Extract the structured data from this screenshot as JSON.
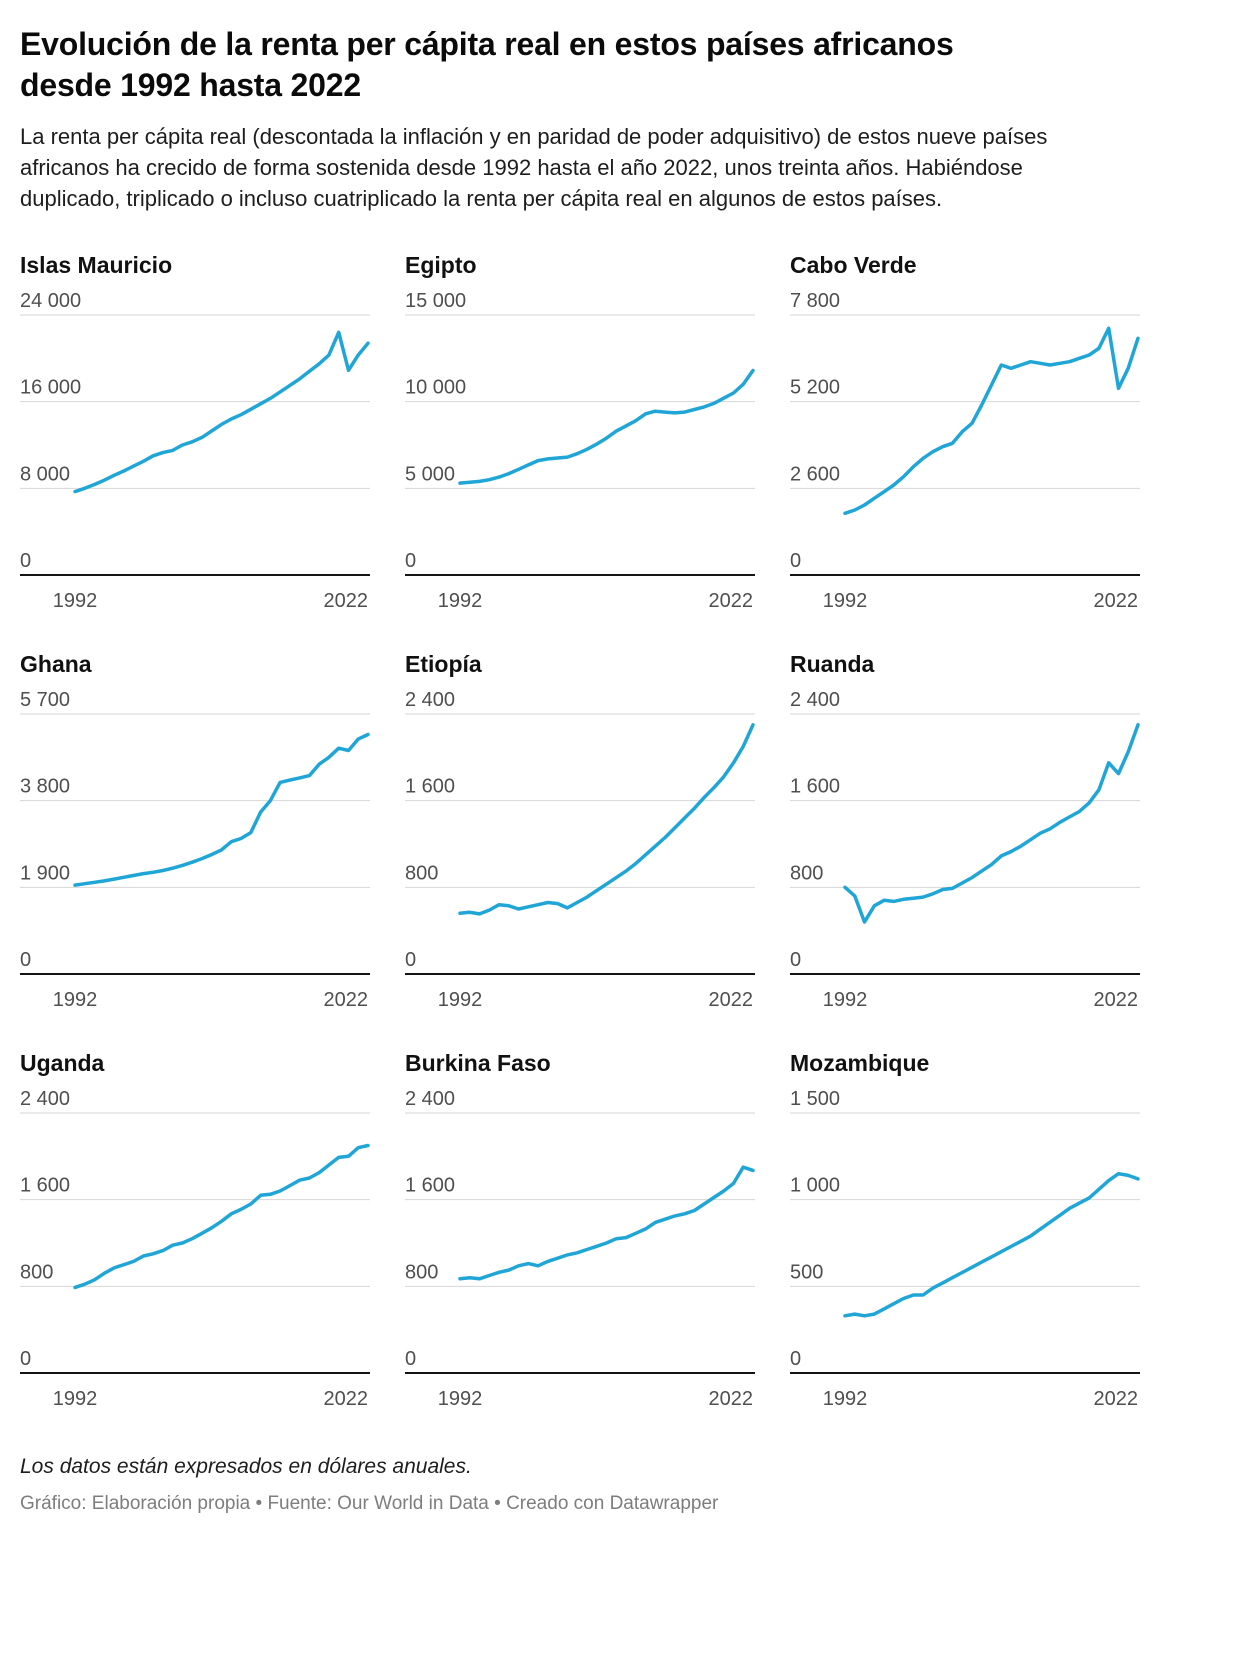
{
  "header": {
    "title": "Evolución de la renta per cápita real en estos países africanos desde 1992 hasta 2022",
    "description": "La renta per cápita real (descontada la inflación y en paridad de poder adquisitivo) de estos nueve países africanos ha crecido de forma sostenida desde 1992 hasta el año 2022, unos treinta años. Habiéndose duplicado, triplicado o incluso cuatriplicado la renta per cápita real en algunos de estos países."
  },
  "footer": {
    "note": "Los datos están expresados en dólares anuales.",
    "credits": "Gráfico: Elaboración propia • Fuente: Our World in Data • Creado con Datawrapper"
  },
  "colors": {
    "line": "#1fa5d6",
    "grid": "#d6d6d6",
    "axis": "#141414",
    "tick_text": "#4f4f4f"
  },
  "chart_data": {
    "type": "line",
    "unit": "dólares anuales",
    "x_start": 1992,
    "x_end": 2022,
    "x_tick_labels": [
      "1992",
      "2022"
    ],
    "grid": true,
    "legend": "none",
    "charts": [
      {
        "title": "Islas Mauricio",
        "ymax": 24000,
        "yticks": [
          0,
          8000,
          16000,
          24000
        ],
        "ytick_labels": [
          "0",
          "8 000",
          "16 000",
          "24 000"
        ],
        "values": [
          7700,
          8000,
          8350,
          8750,
          9200,
          9600,
          10050,
          10500,
          11000,
          11300,
          11500,
          12000,
          12300,
          12700,
          13300,
          13900,
          14400,
          14800,
          15300,
          15800,
          16300,
          16900,
          17500,
          18100,
          18800,
          19500,
          20300,
          22400,
          18900,
          20300,
          21400
        ]
      },
      {
        "title": "Egipto",
        "ymax": 15000,
        "yticks": [
          0,
          5000,
          10000,
          15000
        ],
        "ytick_labels": [
          "0",
          "5 000",
          "10 000",
          "15 000"
        ],
        "values": [
          5300,
          5350,
          5400,
          5500,
          5650,
          5850,
          6100,
          6350,
          6600,
          6700,
          6750,
          6800,
          7000,
          7250,
          7550,
          7900,
          8300,
          8600,
          8900,
          9300,
          9450,
          9400,
          9350,
          9400,
          9550,
          9700,
          9900,
          10200,
          10500,
          11000,
          11800
        ]
      },
      {
        "title": "Cabo Verde",
        "ymax": 7800,
        "yticks": [
          0,
          2600,
          5200,
          7800
        ],
        "ytick_labels": [
          "0",
          "2 600",
          "5 200",
          "7 800"
        ],
        "values": [
          1850,
          1950,
          2100,
          2300,
          2500,
          2700,
          2950,
          3250,
          3500,
          3700,
          3850,
          3950,
          4300,
          4550,
          5100,
          5700,
          6300,
          6200,
          6300,
          6400,
          6350,
          6300,
          6350,
          6400,
          6500,
          6600,
          6800,
          7400,
          5600,
          6200,
          7100
        ]
      },
      {
        "title": "Ghana",
        "ymax": 5700,
        "yticks": [
          0,
          1900,
          3800,
          5700
        ],
        "ytick_labels": [
          "0",
          "1 900",
          "3 800",
          "5 700"
        ],
        "values": [
          1950,
          1980,
          2010,
          2040,
          2080,
          2120,
          2160,
          2200,
          2230,
          2270,
          2320,
          2380,
          2450,
          2530,
          2620,
          2720,
          2900,
          2970,
          3100,
          3550,
          3800,
          4200,
          4250,
          4300,
          4350,
          4600,
          4750,
          4950,
          4900,
          5150,
          5250
        ]
      },
      {
        "title": "Etiopía",
        "ymax": 2400,
        "yticks": [
          0,
          800,
          1600,
          2400
        ],
        "ytick_labels": [
          "0",
          "800",
          "1 600",
          "2 400"
        ],
        "values": [
          560,
          570,
          555,
          590,
          640,
          630,
          600,
          620,
          640,
          660,
          650,
          610,
          660,
          710,
          770,
          830,
          890,
          950,
          1020,
          1100,
          1180,
          1260,
          1350,
          1440,
          1530,
          1630,
          1720,
          1820,
          1950,
          2100,
          2300
        ]
      },
      {
        "title": "Ruanda",
        "ymax": 2400,
        "yticks": [
          0,
          800,
          1600,
          2400
        ],
        "ytick_labels": [
          "0",
          "800",
          "1 600",
          "2 400"
        ],
        "values": [
          800,
          720,
          480,
          630,
          680,
          670,
          690,
          700,
          710,
          740,
          780,
          790,
          840,
          890,
          950,
          1010,
          1090,
          1130,
          1180,
          1240,
          1300,
          1340,
          1400,
          1450,
          1500,
          1580,
          1700,
          1950,
          1850,
          2050,
          2300
        ]
      },
      {
        "title": "Uganda",
        "ymax": 2400,
        "yticks": [
          0,
          800,
          1600,
          2400
        ],
        "ytick_labels": [
          "0",
          "800",
          "1 600",
          "2 400"
        ],
        "values": [
          790,
          820,
          860,
          920,
          970,
          1000,
          1030,
          1080,
          1100,
          1130,
          1180,
          1200,
          1240,
          1290,
          1340,
          1400,
          1470,
          1510,
          1560,
          1640,
          1650,
          1680,
          1730,
          1780,
          1800,
          1850,
          1920,
          1990,
          2000,
          2080,
          2100
        ]
      },
      {
        "title": "Burkina Faso",
        "ymax": 2400,
        "yticks": [
          0,
          800,
          1600,
          2400
        ],
        "ytick_labels": [
          "0",
          "800",
          "1 600",
          "2 400"
        ],
        "values": [
          870,
          880,
          870,
          900,
          930,
          950,
          990,
          1010,
          990,
          1030,
          1060,
          1090,
          1110,
          1140,
          1170,
          1200,
          1240,
          1250,
          1290,
          1330,
          1390,
          1420,
          1450,
          1470,
          1500,
          1560,
          1620,
          1680,
          1750,
          1900,
          1870
        ]
      },
      {
        "title": "Mozambique",
        "ymax": 1500,
        "yticks": [
          0,
          500,
          1000,
          1500
        ],
        "ytick_labels": [
          "0",
          "500",
          "1 000",
          "1 500"
        ],
        "values": [
          330,
          340,
          330,
          340,
          370,
          400,
          430,
          450,
          450,
          490,
          520,
          550,
          580,
          610,
          640,
          670,
          700,
          730,
          760,
          790,
          830,
          870,
          910,
          950,
          980,
          1010,
          1060,
          1110,
          1150,
          1140,
          1120
        ]
      }
    ]
  }
}
